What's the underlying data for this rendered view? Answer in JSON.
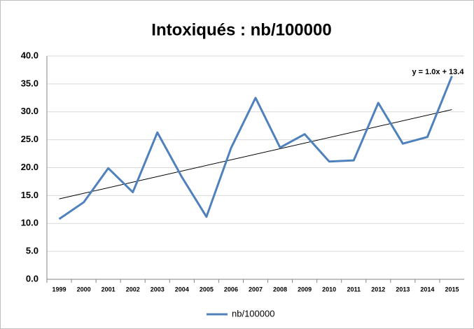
{
  "chart_data": {
    "type": "line",
    "title": "Intoxiqués : nb/100000",
    "categories": [
      "1999",
      "2000",
      "2001",
      "2002",
      "2003",
      "2004",
      "2005",
      "2006",
      "2007",
      "2008",
      "2009",
      "2010",
      "2011",
      "2012",
      "2013",
      "2014",
      "2015"
    ],
    "series": [
      {
        "name": "nb/100000",
        "color": "#4f81bd",
        "values": [
          10.8,
          13.8,
          19.9,
          15.6,
          26.3,
          18.3,
          11.2,
          23.5,
          32.5,
          23.6,
          26.0,
          21.1,
          21.3,
          31.6,
          24.3,
          25.5,
          36.4
        ]
      }
    ],
    "trendline": {
      "slope": 1.0,
      "intercept": 13.4,
      "label": "y = 1.0x + 13.4",
      "color": "#000000"
    },
    "ylim": [
      0,
      40
    ],
    "yticks": [
      {
        "value": 0,
        "label": "0.0"
      },
      {
        "value": 5,
        "label": "5.0"
      },
      {
        "value": 10,
        "label": "10.0"
      },
      {
        "value": 15,
        "label": "15.0"
      },
      {
        "value": 20,
        "label": "20.0"
      },
      {
        "value": 25,
        "label": "25.0"
      },
      {
        "value": 30,
        "label": "30.0"
      },
      {
        "value": 35,
        "label": "35.0"
      },
      {
        "value": 40,
        "label": "40.0"
      }
    ],
    "grid": true,
    "legend": "bottom"
  }
}
